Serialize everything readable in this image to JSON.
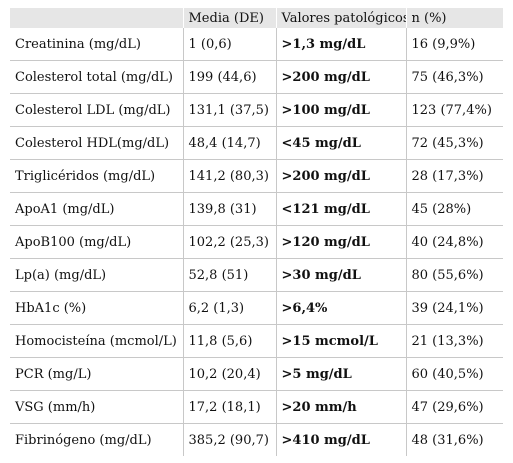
{
  "table": {
    "headers": [
      "",
      "Media (DE)",
      "Valores patológicos",
      "n (%)"
    ],
    "rows": [
      {
        "parameter": "Creatinina (mg/dL)",
        "mean": "1 (0,6)",
        "pathological": ">1,3 mg/dL",
        "n": "16 (9,9%)"
      },
      {
        "parameter": "Colesterol total (mg/dL)",
        "mean": "199 (44,6)",
        "pathological": ">200 mg/dL",
        "n": "75 (46,3%)"
      },
      {
        "parameter": "Colesterol LDL (mg/dL)",
        "mean": "131,1 (37,5)",
        "pathological": ">100 mg/dL",
        "n": "123 (77,4%)"
      },
      {
        "parameter": "Colesterol HDL(mg/dL)",
        "mean": "48,4 (14,7)",
        "pathological": "<45 mg/dL",
        "n": "72 (45,3%)"
      },
      {
        "parameter": "Triglicéridos (mg/dL)",
        "mean": "141,2 (80,3)",
        "pathological": ">200 mg/dL",
        "n": "28 (17,3%)"
      },
      {
        "parameter": "ApoA1 (mg/dL)",
        "mean": "139,8 (31)",
        "pathological": "<121 mg/dL",
        "n": "45 (28%)"
      },
      {
        "parameter": "ApoB100 (mg/dL)",
        "mean": "102,2 (25,3)",
        "pathological": ">120 mg/dL",
        "n": "40 (24,8%)"
      },
      {
        "parameter": "Lp(a) (mg/dL)",
        "mean": "52,8 (51)",
        "pathological": ">30 mg/dL",
        "n": "80 (55,6%)"
      },
      {
        "parameter": "HbA1c (%)",
        "mean": "6,2 (1,3)",
        "pathological": ">6,4%",
        "n": "39 (24,1%)"
      },
      {
        "parameter": "Homocisteína (mcmol/L)",
        "mean": "11,8 (5,6)",
        "pathological": ">15 mcmol/L",
        "n": "21 (13,3%)"
      },
      {
        "parameter": "PCR (mg/L)",
        "mean": "10,2 (20,4)",
        "pathological": ">5 mg/dL",
        "n": "60 (40,5%)"
      },
      {
        "parameter": "VSG (mm/h)",
        "mean": "17,2 (18,1)",
        "pathological": ">20 mm/h",
        "n": "47 (29,6%)"
      },
      {
        "parameter": "Fibrinógeno (mg/dL)",
        "mean": "385,2 (90,7)",
        "pathological": ">410 mg/dL",
        "n": "48 (31,6%)"
      }
    ]
  }
}
